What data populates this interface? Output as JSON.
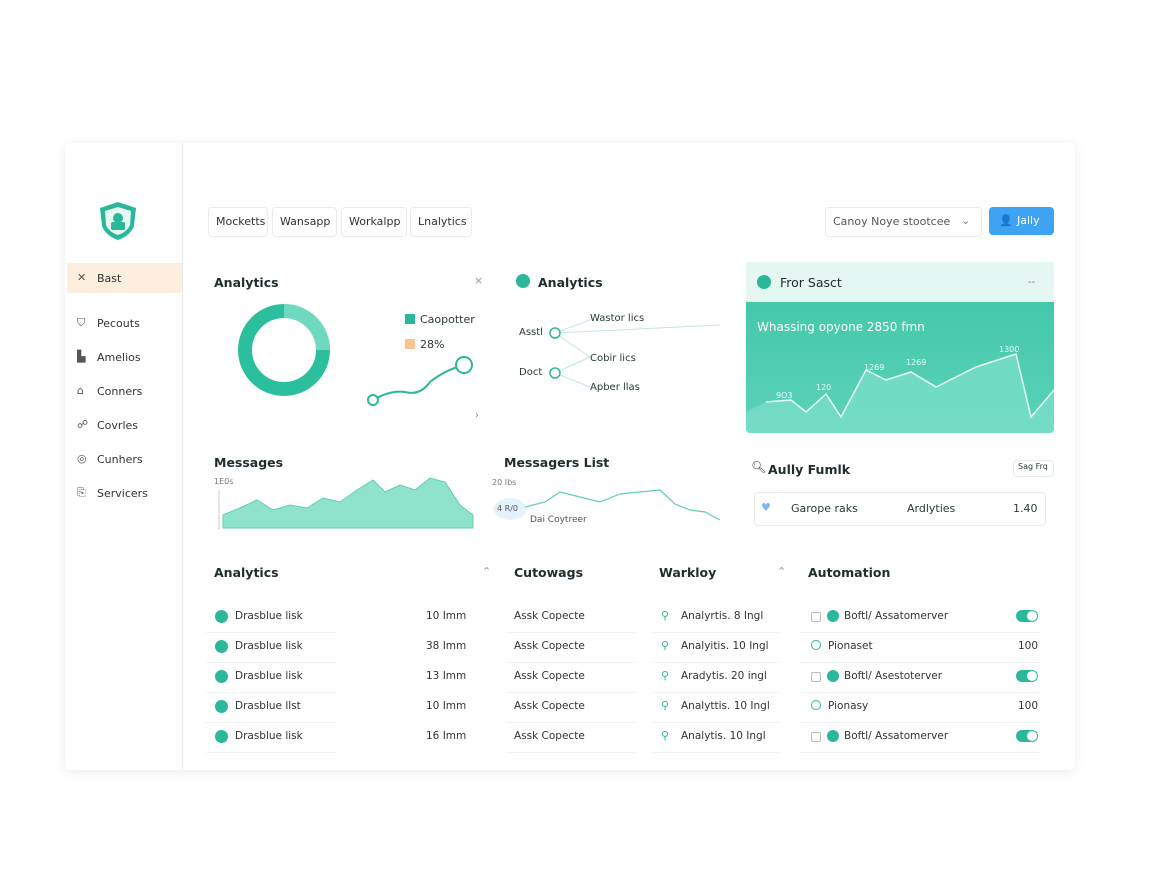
{
  "sidebar": {
    "items": [
      "Bast",
      "Pecouts",
      "Amelios",
      "Conners",
      "Covrles",
      "Cunhers",
      "Servicers"
    ]
  },
  "tabs": [
    "Mocketts",
    "Wansapp",
    "Workalpp",
    "Lnalytics"
  ],
  "toolbar": {
    "dropdown": "Canoy Noye stootcee",
    "button": "Jally"
  },
  "analytics_card": {
    "title": "Analytics",
    "legend": [
      "Caopotter",
      "28%"
    ]
  },
  "flow_card": {
    "title": "Analytics",
    "nodes": [
      "Asstl",
      "Doct"
    ],
    "labels": [
      "Wastor lics",
      "Cobir lics",
      "Apber llas"
    ]
  },
  "promo_card": {
    "title": "Fror Sasct",
    "subtitle": "Whassing opyone 2850 fmn",
    "chart_labels": [
      "9O3",
      "120",
      "1269",
      "1269",
      "1300"
    ]
  },
  "messages_card": {
    "title": "Messages",
    "axis_label": "1E0s"
  },
  "messages_list_card": {
    "title": "Messagers List",
    "axis_label": "20 Ibs",
    "badge": "4 R/0",
    "caption": "Dai Coytreer"
  },
  "summary_card": {
    "title": "Aully Fumlk",
    "button": "Sag Frq",
    "row": [
      "Garope raks",
      "Ardlyties",
      "1.40"
    ]
  },
  "tables": [
    {
      "title": "Analytics",
      "rows": [
        [
          "Drasblue lisk",
          "10 Imm"
        ],
        [
          "Drasblue lisk",
          "38 Imm"
        ],
        [
          "Drasblue lisk",
          "13 Imm"
        ],
        [
          "Drasblue llst",
          "10 Imm"
        ],
        [
          "Drasblue lisk",
          "16 Imm"
        ]
      ]
    },
    {
      "title": "Cutowags",
      "rows": [
        [
          "Assk Copecte"
        ],
        [
          "Assk Copecte"
        ],
        [
          "Assk Copecte"
        ],
        [
          "Assk Copecte"
        ],
        [
          "Assk Copecte"
        ]
      ]
    },
    {
      "title": "Warkloy",
      "rows": [
        [
          "Analyrtis. 8 Ingl"
        ],
        [
          "Analyitis. 10 Ingl"
        ],
        [
          "Aradytis. 20 ingl"
        ],
        [
          "Analyttis. 10 Ingl"
        ],
        [
          "Analytis. 10 Ingl"
        ]
      ]
    },
    {
      "title": "Automation",
      "rows": [
        [
          "Boftl/ Assatomerver"
        ],
        [
          "Pionaset",
          "100"
        ],
        [
          "Boftl/ Asestoterver"
        ],
        [
          "Pionasy",
          "100"
        ],
        [
          "Boftl/ Assatomerver"
        ]
      ]
    }
  ]
}
